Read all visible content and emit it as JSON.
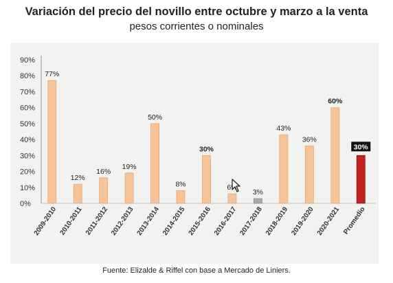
{
  "header": {
    "title": "Variación del precio del novillo entre octubre y marzo a la venta",
    "subtitle": "pesos corrientes o nominales"
  },
  "footer": {
    "source": "Fuente: Elizalde & Riffel con base a Mercado de Liniers."
  },
  "cursor": {
    "icon": "mouse-pointer-icon"
  },
  "chart_data": {
    "type": "bar",
    "title": "",
    "xlabel": "",
    "ylabel": "",
    "ylim": [
      0,
      90
    ],
    "yticks": [
      0,
      10,
      20,
      30,
      40,
      50,
      60,
      70,
      80,
      90
    ],
    "ytick_labels": [
      "0%",
      "10%",
      "20%",
      "30%",
      "40%",
      "50%",
      "60%",
      "70%",
      "80%",
      "90%"
    ],
    "grid": false,
    "legend": "none",
    "categories": [
      "2009-2010",
      "2010-2011",
      "2011-2012",
      "2012-2013",
      "2013-2014",
      "2014-2015",
      "2015-2016",
      "2016-2017",
      "2017-2018",
      "2018-2019",
      "2019-2020",
      "2020-2021",
      "Promedio"
    ],
    "values": [
      77,
      12,
      16,
      19,
      50,
      8,
      30,
      6,
      3,
      43,
      36,
      60,
      30
    ],
    "data_labels": [
      "77%",
      "12%",
      "16%",
      "19%",
      "50%",
      "8%",
      "30%",
      "6%",
      "3%",
      "43%",
      "36%",
      "60%",
      "30%"
    ],
    "colors": {
      "default_bar": "#f7c49a",
      "default_stroke": "#eda570",
      "low_bar": "#a8a8a8",
      "low_stroke": "#8f8f8f",
      "average_bar": "#c3201f",
      "average_stroke": "#8e1212",
      "average_label_bg": "#111111",
      "average_label_text": "#ffffff"
    },
    "bar_styles": [
      "default",
      "default",
      "default",
      "default",
      "default",
      "default",
      "default",
      "default",
      "low",
      "default",
      "default",
      "default",
      "average"
    ],
    "bold_labels": [
      "60%",
      "30%"
    ]
  }
}
